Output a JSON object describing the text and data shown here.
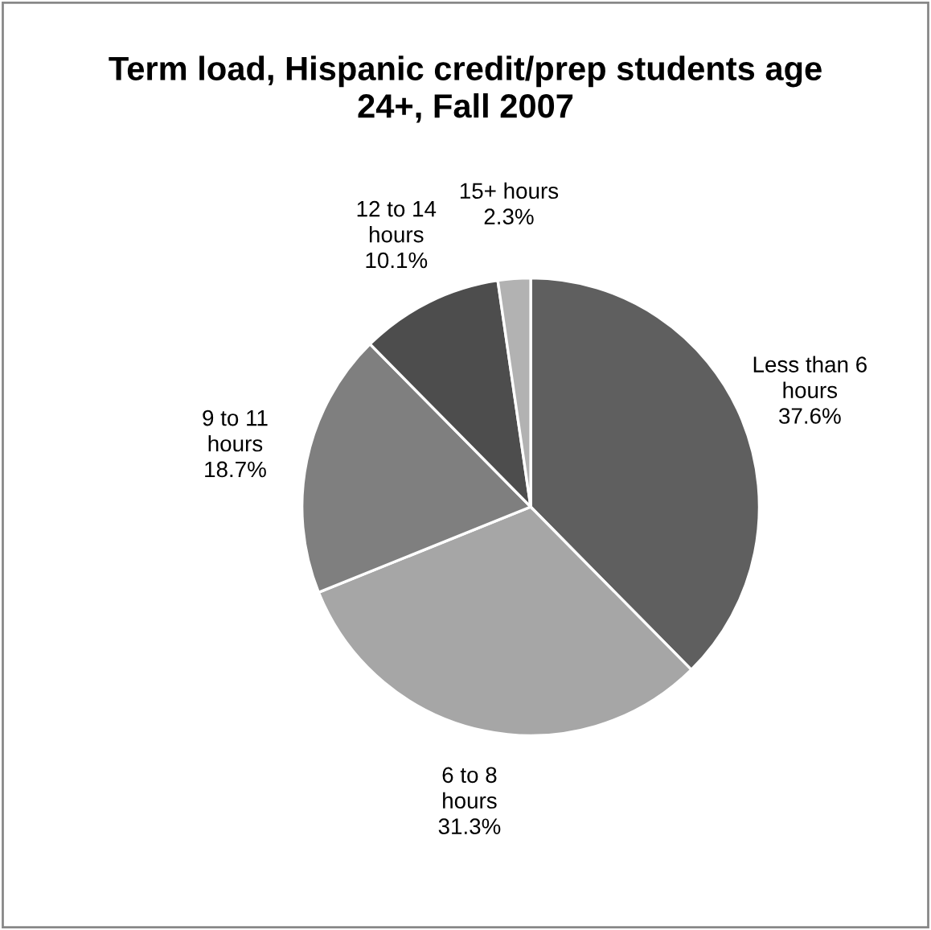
{
  "chart_data": {
    "type": "pie",
    "title": "Term load, Hispanic credit/prep students age 24+, Fall 2007",
    "categories": [
      "Less than 6 hours",
      "6 to 8 hours",
      "9 to 11 hours",
      "12 to 14 hours",
      "15+ hours"
    ],
    "values": [
      37.6,
      31.3,
      18.7,
      10.1,
      2.3
    ],
    "colors": [
      "#5f5f5f",
      "#a6a6a6",
      "#7f7f7f",
      "#4d4d4d",
      "#b2b2b2"
    ],
    "value_labels": [
      "37.6%",
      "31.3%",
      "18.7%",
      "10.1%",
      "2.3%"
    ],
    "legend": false
  }
}
